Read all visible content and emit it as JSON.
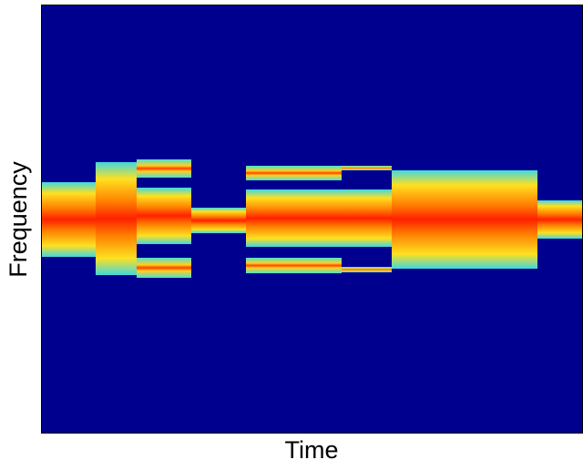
{
  "chart_data": {
    "type": "spectrogram",
    "xlabel": "Time",
    "ylabel": "Frequency"
  }
}
